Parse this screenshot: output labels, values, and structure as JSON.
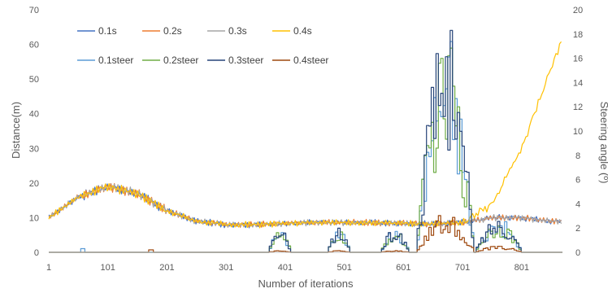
{
  "chart_data": {
    "type": "line",
    "xlabel": "Number of iterations",
    "ylabel": "Distance(m)",
    "y2label": "Steering angle (º)",
    "x_ticks": [
      "1",
      "101",
      "201",
      "301",
      "401",
      "501",
      "601",
      "701",
      "801"
    ],
    "y_ticks": [
      "0",
      "10",
      "20",
      "30",
      "40",
      "50",
      "60",
      "70"
    ],
    "y2_ticks": [
      "0",
      "2",
      "4",
      "6",
      "8",
      "10",
      "12",
      "14",
      "16",
      "18",
      "20"
    ],
    "xlim": [
      1,
      870
    ],
    "ylim": [
      0,
      70
    ],
    "y2lim": [
      0,
      20
    ],
    "grid": false,
    "legend_position": "top-left",
    "series": [
      {
        "name": "0.1s",
        "axis": "left",
        "color": "#4472c4"
      },
      {
        "name": "0.2s",
        "axis": "left",
        "color": "#ed7d31"
      },
      {
        "name": "0.3s",
        "axis": "left",
        "color": "#a5a5a5"
      },
      {
        "name": "0.4s",
        "axis": "left",
        "color": "#ffc000"
      },
      {
        "name": "0.1steer",
        "axis": "right",
        "color": "#5b9bd5"
      },
      {
        "name": "0.2steer",
        "axis": "right",
        "color": "#70ad47"
      },
      {
        "name": "0.3steer",
        "axis": "right",
        "color": "#264478"
      },
      {
        "name": "0.4steer",
        "axis": "right",
        "color": "#9e480e"
      }
    ],
    "profile": {
      "x": [
        1,
        51,
        101,
        151,
        201,
        251,
        301,
        351,
        401,
        451,
        501,
        551,
        601,
        651,
        701,
        751,
        801,
        851,
        870
      ],
      "distance": [
        10,
        16,
        19,
        17,
        12,
        9,
        8,
        8,
        8.3,
        8.6,
        8.6,
        8.5,
        8.3,
        8.2,
        8.6,
        10,
        10,
        9,
        9
      ],
      "distance_04s_tail": {
        "x": [
          701,
          751,
          801,
          870
        ],
        "y": [
          8.6,
          14,
          30,
          62
        ]
      },
      "steer_bursts": [
        {
          "x_start": 370,
          "x_end": 410,
          "peak": 2
        },
        {
          "x_start": 470,
          "x_end": 510,
          "peak": 2
        },
        {
          "x_start": 560,
          "x_end": 610,
          "peak": 2
        },
        {
          "x_start": 620,
          "x_end": 720,
          "peak": 18.3
        },
        {
          "x_start": 720,
          "x_end": 800,
          "peak": 3
        }
      ]
    }
  }
}
